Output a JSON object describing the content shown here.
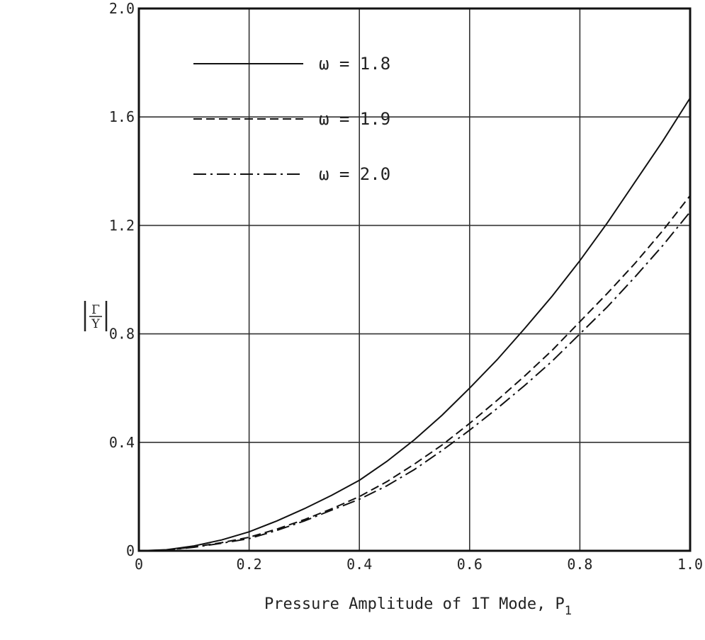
{
  "chart_data": {
    "type": "line",
    "xlabel": "Pressure Amplitude of 1T Mode,  P",
    "xlabel_subscript": "1",
    "ylabel_numerator": "Γ",
    "ylabel_denominator": "Y",
    "xlim": [
      0,
      1.0
    ],
    "ylim": [
      0,
      2.0
    ],
    "grid": true,
    "legend_position": "top-left",
    "x_ticks": [
      "0",
      "0.2",
      "0.4",
      "0.6",
      "0.8",
      "1.0"
    ],
    "y_ticks": [
      "0",
      "0.4",
      "0.8",
      "1.2",
      "1.6",
      "2.0"
    ],
    "x_tick_values": [
      0,
      0.2,
      0.4,
      0.6,
      0.8,
      1.0
    ],
    "y_tick_values": [
      0,
      0.4,
      0.8,
      1.2,
      1.6,
      2.0
    ],
    "series": [
      {
        "name": "ω = 1.8",
        "style": "solid",
        "x": [
          0,
          0.05,
          0.1,
          0.15,
          0.2,
          0.25,
          0.3,
          0.35,
          0.4,
          0.45,
          0.5,
          0.55,
          0.6,
          0.65,
          0.7,
          0.75,
          0.8,
          0.85,
          0.9,
          0.95,
          1.0
        ],
        "y": [
          0,
          0.004,
          0.018,
          0.04,
          0.07,
          0.11,
          0.155,
          0.205,
          0.26,
          0.33,
          0.41,
          0.5,
          0.6,
          0.705,
          0.82,
          0.94,
          1.07,
          1.21,
          1.36,
          1.51,
          1.67
        ]
      },
      {
        "name": "ω = 1.9",
        "style": "dashed",
        "x": [
          0,
          0.05,
          0.1,
          0.15,
          0.2,
          0.25,
          0.3,
          0.35,
          0.4,
          0.45,
          0.5,
          0.55,
          0.6,
          0.65,
          0.7,
          0.75,
          0.8,
          0.85,
          0.9,
          0.95,
          1.0
        ],
        "y": [
          0,
          0.003,
          0.014,
          0.03,
          0.05,
          0.08,
          0.115,
          0.155,
          0.2,
          0.255,
          0.32,
          0.39,
          0.47,
          0.555,
          0.645,
          0.74,
          0.845,
          0.95,
          1.06,
          1.18,
          1.31
        ]
      },
      {
        "name": "ω = 2.0",
        "style": "dashdot",
        "x": [
          0,
          0.05,
          0.1,
          0.15,
          0.2,
          0.25,
          0.3,
          0.35,
          0.4,
          0.45,
          0.5,
          0.55,
          0.6,
          0.65,
          0.7,
          0.75,
          0.8,
          0.85,
          0.9,
          0.95,
          1.0
        ],
        "y": [
          0,
          0.003,
          0.013,
          0.028,
          0.045,
          0.075,
          0.11,
          0.15,
          0.19,
          0.24,
          0.3,
          0.37,
          0.445,
          0.525,
          0.61,
          0.7,
          0.8,
          0.9,
          1.01,
          1.125,
          1.25
        ]
      }
    ]
  }
}
